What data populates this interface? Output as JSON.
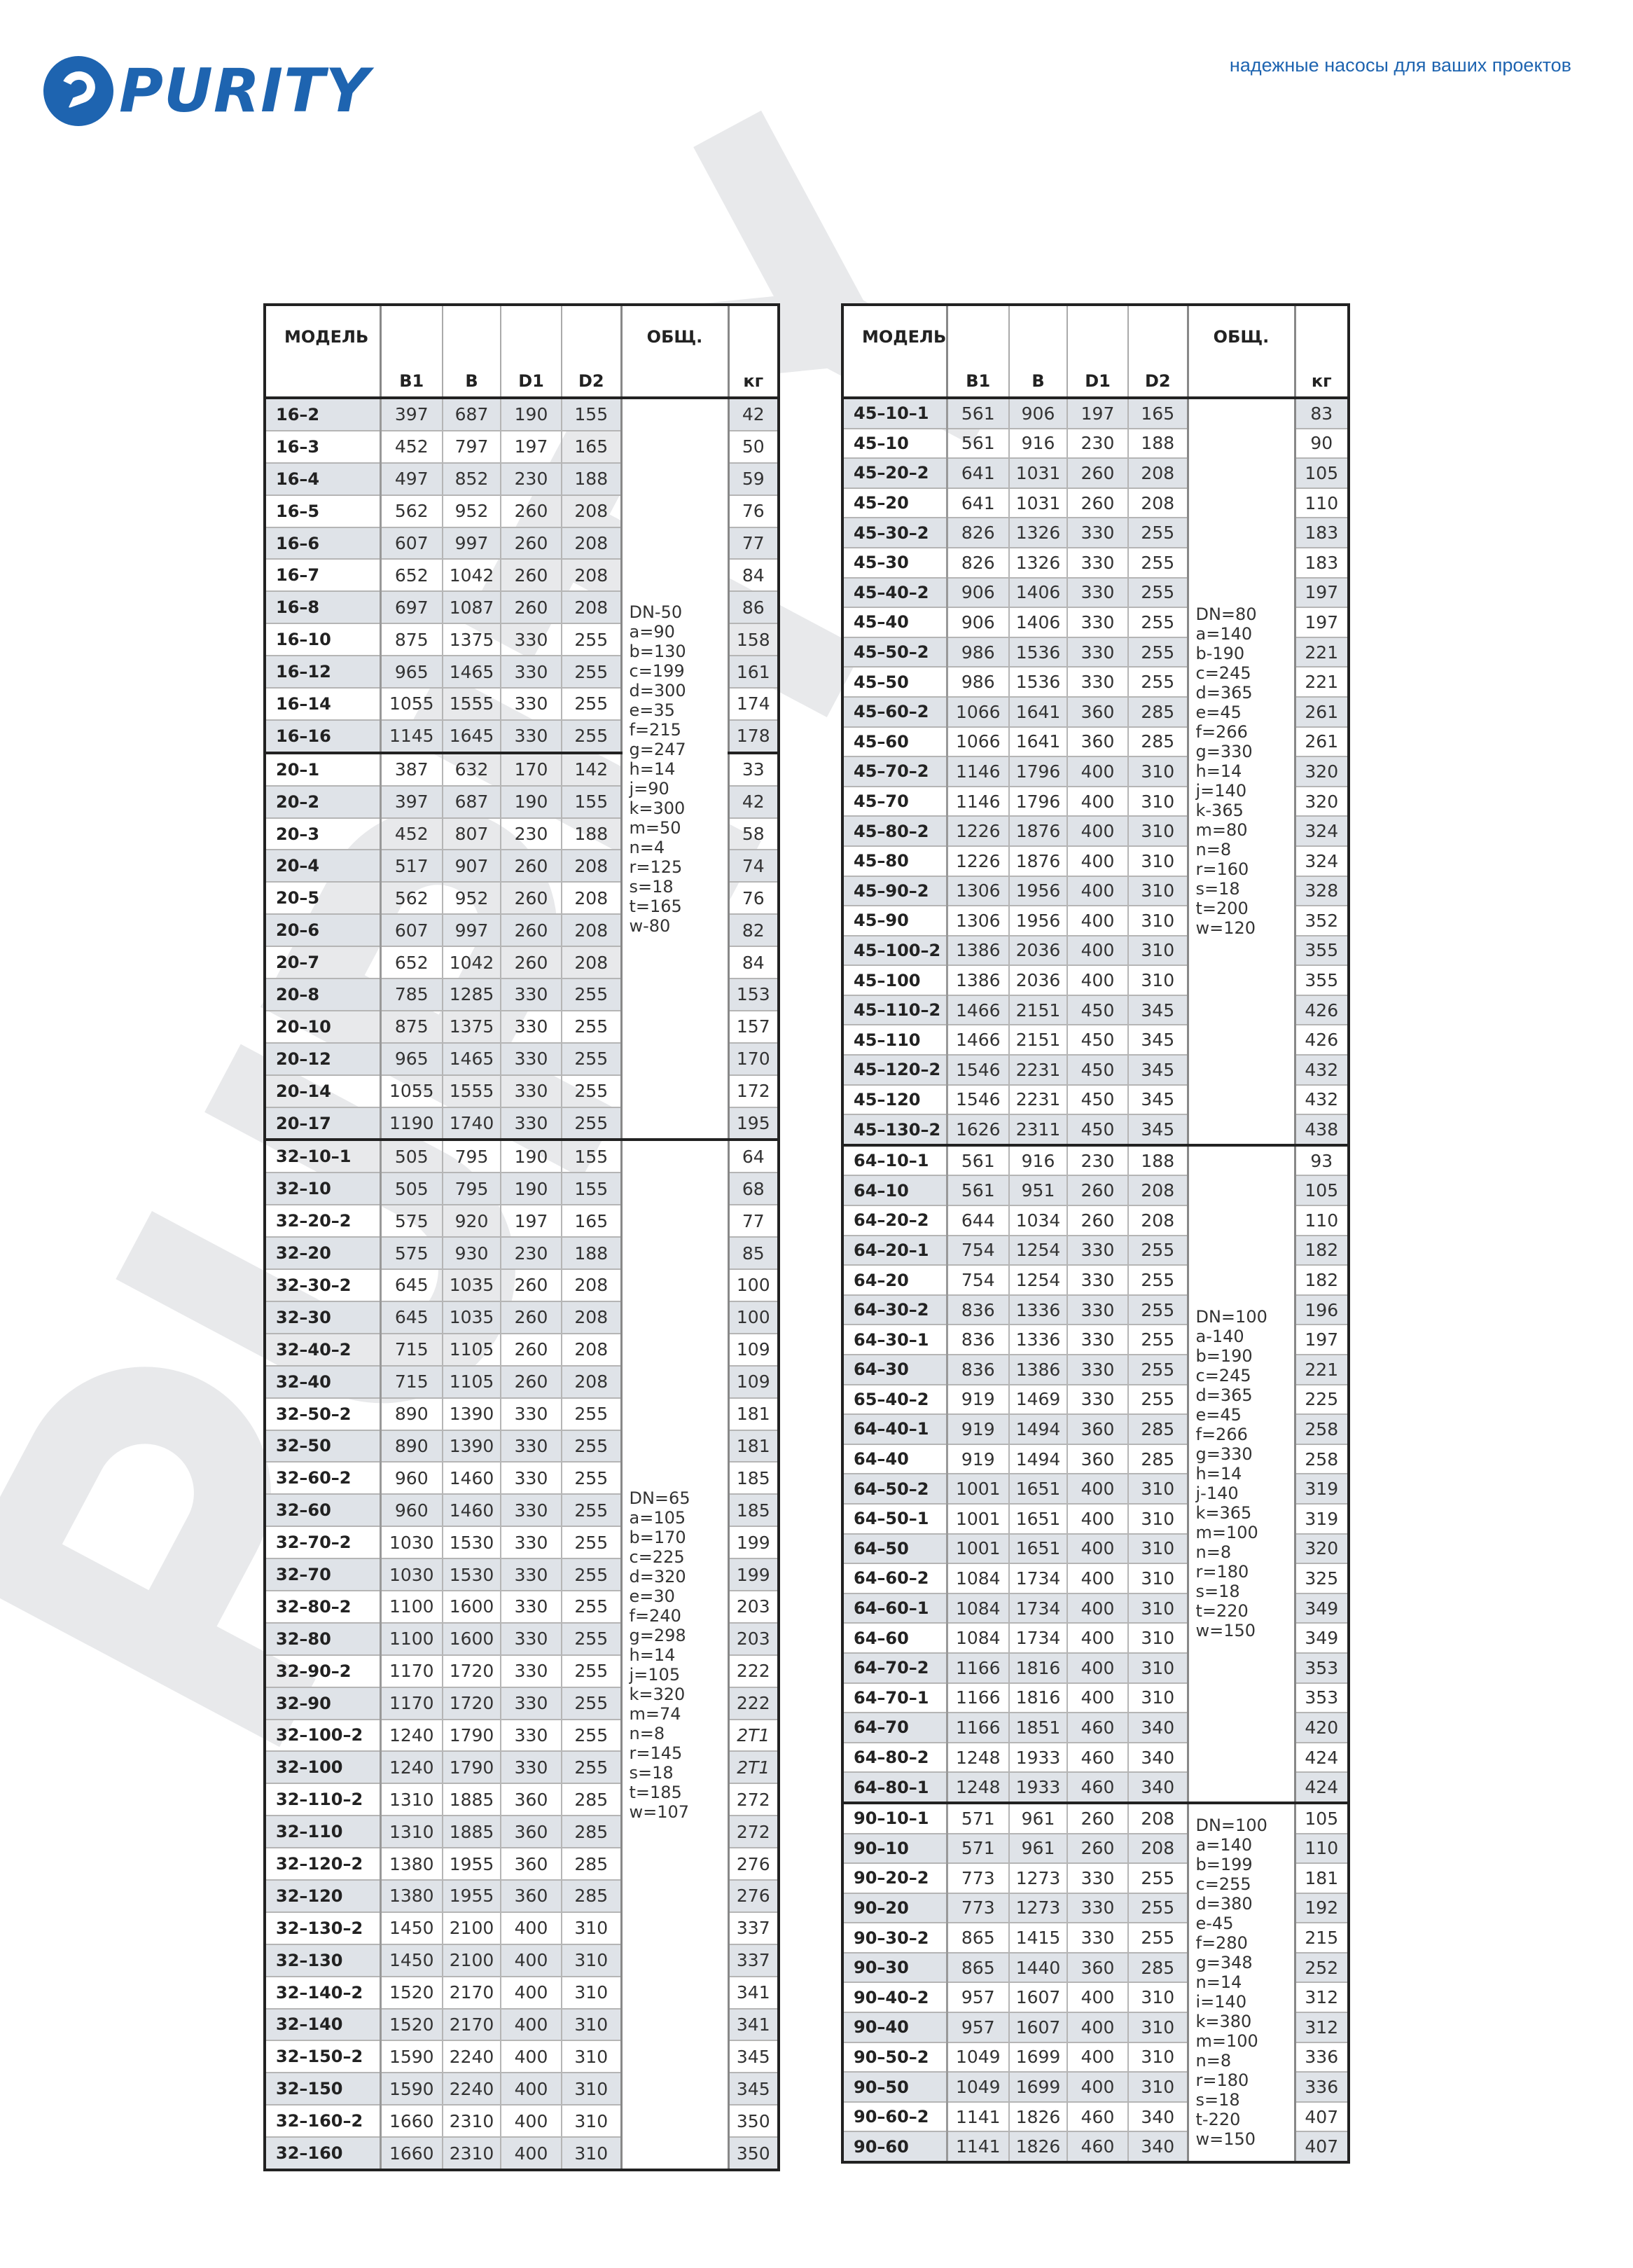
{
  "brand": {
    "logo_text": "PURITY",
    "slogan": "надежные насосы для ваших проектов",
    "color": "#1e64b0"
  },
  "watermark": "PURITY",
  "headers": {
    "model": "МОДЕЛЬ",
    "b1": "B1",
    "b": "B",
    "d1": "D1",
    "d2": "D2",
    "total": "ОБЩ.",
    "kg": "кг"
  },
  "tables": [
    {
      "groups": [
        {
          "note": "DN-50\na=90\nb=130\nc=199\nd=300\ne=35\nf=215\ng=247\nh=14\nj=90\nk=300\nm=50\nn=4\nr=125\ns=18\nt=165\nw-80",
          "note_rows": 23,
          "rows": [
            [
              "16–2",
              "397",
              "687",
              "190",
              "155",
              "42"
            ],
            [
              "16–3",
              "452",
              "797",
              "197",
              "165",
              "50"
            ],
            [
              "16–4",
              "497",
              "852",
              "230",
              "188",
              "59"
            ],
            [
              "16–5",
              "562",
              "952",
              "260",
              "208",
              "76"
            ],
            [
              "16–6",
              "607",
              "997",
              "260",
              "208",
              "77"
            ],
            [
              "16–7",
              "652",
              "1042",
              "260",
              "208",
              "84"
            ],
            [
              "16–8",
              "697",
              "1087",
              "260",
              "208",
              "86"
            ],
            [
              "16–10",
              "875",
              "1375",
              "330",
              "255",
              "158"
            ],
            [
              "16–12",
              "965",
              "1465",
              "330",
              "255",
              "161"
            ],
            [
              "16–14",
              "1055",
              "1555",
              "330",
              "255",
              "174"
            ],
            [
              "16–16",
              "1145",
              "1645",
              "330",
              "255",
              "178"
            ],
            [
              "20–1",
              "387",
              "632",
              "170",
              "142",
              "33"
            ],
            [
              "20–2",
              "397",
              "687",
              "190",
              "155",
              "42"
            ],
            [
              "20–3",
              "452",
              "807",
              "230",
              "188",
              "58"
            ],
            [
              "20–4",
              "517",
              "907",
              "260",
              "208",
              "74"
            ],
            [
              "20–5",
              "562",
              "952",
              "260",
              "208",
              "76"
            ],
            [
              "20–6",
              "607",
              "997",
              "260",
              "208",
              "82"
            ],
            [
              "20–7",
              "652",
              "1042",
              "260",
              "208",
              "84"
            ],
            [
              "20–8",
              "785",
              "1285",
              "330",
              "255",
              "153"
            ],
            [
              "20–10",
              "875",
              "1375",
              "330",
              "255",
              "157"
            ],
            [
              "20–12",
              "965",
              "1465",
              "330",
              "255",
              "170"
            ],
            [
              "20–14",
              "1055",
              "1555",
              "330",
              "255",
              "172"
            ],
            [
              "20–17",
              "1190",
              "1740",
              "330",
              "255",
              "195"
            ]
          ],
          "divider_after": [
            10
          ]
        },
        {
          "note": "DN=65\na=105\nb=170\nc=225\nd=320\ne=30\nf=240\ng=298\nh=14\nj=105\nk=320\nm=74\nn=8\nr=145\ns=18\nt=185\nw=107",
          "rows": [
            [
              "32–10–1",
              "505",
              "795",
              "190",
              "155",
              "64"
            ],
            [
              "32–10",
              "505",
              "795",
              "190",
              "155",
              "68"
            ],
            [
              "32–20–2",
              "575",
              "920",
              "197",
              "165",
              "77"
            ],
            [
              "32–20",
              "575",
              "930",
              "230",
              "188",
              "85"
            ],
            [
              "32–30–2",
              "645",
              "1035",
              "260",
              "208",
              "100"
            ],
            [
              "32–30",
              "645",
              "1035",
              "260",
              "208",
              "100"
            ],
            [
              "32–40–2",
              "715",
              "1105",
              "260",
              "208",
              "109"
            ],
            [
              "32–40",
              "715",
              "1105",
              "260",
              "208",
              "109"
            ],
            [
              "32–50–2",
              "890",
              "1390",
              "330",
              "255",
              "181"
            ],
            [
              "32–50",
              "890",
              "1390",
              "330",
              "255",
              "181"
            ],
            [
              "32–60–2",
              "960",
              "1460",
              "330",
              "255",
              "185"
            ],
            [
              "32–60",
              "960",
              "1460",
              "330",
              "255",
              "185"
            ],
            [
              "32–70–2",
              "1030",
              "1530",
              "330",
              "255",
              "199"
            ],
            [
              "32–70",
              "1030",
              "1530",
              "330",
              "255",
              "199"
            ],
            [
              "32–80–2",
              "1100",
              "1600",
              "330",
              "255",
              "203"
            ],
            [
              "32–80",
              "1100",
              "1600",
              "330",
              "255",
              "203"
            ],
            [
              "32–90–2",
              "1170",
              "1720",
              "330",
              "255",
              "222"
            ],
            [
              "32–90",
              "1170",
              "1720",
              "330",
              "255",
              "222"
            ],
            [
              "32–100–2",
              "1240",
              "1790",
              "330",
              "255",
              "2T1"
            ],
            [
              "32–100",
              "1240",
              "1790",
              "330",
              "255",
              "2T1"
            ],
            [
              "32–110–2",
              "1310",
              "1885",
              "360",
              "285",
              "272"
            ],
            [
              "32–110",
              "1310",
              "1885",
              "360",
              "285",
              "272"
            ],
            [
              "32–120–2",
              "1380",
              "1955",
              "360",
              "285",
              "276"
            ],
            [
              "32–120",
              "1380",
              "1955",
              "360",
              "285",
              "276"
            ],
            [
              "32–130–2",
              "1450",
              "2100",
              "400",
              "310",
              "337"
            ],
            [
              "32–130",
              "1450",
              "2100",
              "400",
              "310",
              "337"
            ],
            [
              "32–140–2",
              "1520",
              "2170",
              "400",
              "310",
              "341"
            ],
            [
              "32–140",
              "1520",
              "2170",
              "400",
              "310",
              "341"
            ],
            [
              "32–150–2",
              "1590",
              "2240",
              "400",
              "310",
              "345"
            ],
            [
              "32–150",
              "1590",
              "2240",
              "400",
              "310",
              "345"
            ],
            [
              "32–160–2",
              "1660",
              "2310",
              "400",
              "310",
              "350"
            ],
            [
              "32–160",
              "1660",
              "2310",
              "400",
              "310",
              "350"
            ]
          ]
        }
      ]
    },
    {
      "groups": [
        {
          "note": "DN=80\na=140\nb-190\nc=245\nd=365\ne=45\nf=266\ng=330\nh=14\nj=140\nk-365\nm=80\nn=8\nr=160\ns=18\nt=200\nw=120",
          "rows": [
            [
              "45–10–1",
              "561",
              "906",
              "197",
              "165",
              "83"
            ],
            [
              "45–10",
              "561",
              "916",
              "230",
              "188",
              "90"
            ],
            [
              "45–20–2",
              "641",
              "1031",
              "260",
              "208",
              "105"
            ],
            [
              "45–20",
              "641",
              "1031",
              "260",
              "208",
              "110"
            ],
            [
              "45–30–2",
              "826",
              "1326",
              "330",
              "255",
              "183"
            ],
            [
              "45–30",
              "826",
              "1326",
              "330",
              "255",
              "183"
            ],
            [
              "45–40–2",
              "906",
              "1406",
              "330",
              "255",
              "197"
            ],
            [
              "45–40",
              "906",
              "1406",
              "330",
              "255",
              "197"
            ],
            [
              "45–50–2",
              "986",
              "1536",
              "330",
              "255",
              "221"
            ],
            [
              "45–50",
              "986",
              "1536",
              "330",
              "255",
              "221"
            ],
            [
              "45–60–2",
              "1066",
              "1641",
              "360",
              "285",
              "261"
            ],
            [
              "45–60",
              "1066",
              "1641",
              "360",
              "285",
              "261"
            ],
            [
              "45–70–2",
              "1146",
              "1796",
              "400",
              "310",
              "320"
            ],
            [
              "45–70",
              "1146",
              "1796",
              "400",
              "310",
              "320"
            ],
            [
              "45–80–2",
              "1226",
              "1876",
              "400",
              "310",
              "324"
            ],
            [
              "45–80",
              "1226",
              "1876",
              "400",
              "310",
              "324"
            ],
            [
              "45–90–2",
              "1306",
              "1956",
              "400",
              "310",
              "328"
            ],
            [
              "45–90",
              "1306",
              "1956",
              "400",
              "310",
              "352"
            ],
            [
              "45–100–2",
              "1386",
              "2036",
              "400",
              "310",
              "355"
            ],
            [
              "45–100",
              "1386",
              "2036",
              "400",
              "310",
              "355"
            ],
            [
              "45–110–2",
              "1466",
              "2151",
              "450",
              "345",
              "426"
            ],
            [
              "45–110",
              "1466",
              "2151",
              "450",
              "345",
              "426"
            ],
            [
              "45–120–2",
              "1546",
              "2231",
              "450",
              "345",
              "432"
            ],
            [
              "45–120",
              "1546",
              "2231",
              "450",
              "345",
              "432"
            ],
            [
              "45–130–2",
              "1626",
              "2311",
              "450",
              "345",
              "438"
            ]
          ]
        },
        {
          "note": "DN=100\na-140\nb=190\nc=245\nd=365\ne=45\nf=266\ng=330\nh=14\nj-140\nk=365\nm=100\nn=8\nr=180\ns=18\nt=220\nw=150",
          "rows": [
            [
              "64–10–1",
              "561",
              "916",
              "230",
              "188",
              "93"
            ],
            [
              "64–10",
              "561",
              "951",
              "260",
              "208",
              "105"
            ],
            [
              "64–20–2",
              "644",
              "1034",
              "260",
              "208",
              "110"
            ],
            [
              "64–20–1",
              "754",
              "1254",
              "330",
              "255",
              "182"
            ],
            [
              "64–20",
              "754",
              "1254",
              "330",
              "255",
              "182"
            ],
            [
              "64–30–2",
              "836",
              "1336",
              "330",
              "255",
              "196"
            ],
            [
              "64–30–1",
              "836",
              "1336",
              "330",
              "255",
              "197"
            ],
            [
              "64–30",
              "836",
              "1386",
              "330",
              "255",
              "221"
            ],
            [
              "65–40–2",
              "919",
              "1469",
              "330",
              "255",
              "225"
            ],
            [
              "64–40–1",
              "919",
              "1494",
              "360",
              "285",
              "258"
            ],
            [
              "64–40",
              "919",
              "1494",
              "360",
              "285",
              "258"
            ],
            [
              "64–50–2",
              "1001",
              "1651",
              "400",
              "310",
              "319"
            ],
            [
              "64–50–1",
              "1001",
              "1651",
              "400",
              "310",
              "319"
            ],
            [
              "64–50",
              "1001",
              "1651",
              "400",
              "310",
              "320"
            ],
            [
              "64–60–2",
              "1084",
              "1734",
              "400",
              "310",
              "325"
            ],
            [
              "64–60–1",
              "1084",
              "1734",
              "400",
              "310",
              "349"
            ],
            [
              "64–60",
              "1084",
              "1734",
              "400",
              "310",
              "349"
            ],
            [
              "64–70–2",
              "1166",
              "1816",
              "400",
              "310",
              "353"
            ],
            [
              "64–70–1",
              "1166",
              "1816",
              "400",
              "310",
              "353"
            ],
            [
              "64–70",
              "1166",
              "1851",
              "460",
              "340",
              "420"
            ],
            [
              "64–80–2",
              "1248",
              "1933",
              "460",
              "340",
              "424"
            ],
            [
              "64–80–1",
              "1248",
              "1933",
              "460",
              "340",
              "424"
            ]
          ]
        },
        {
          "note": "DN=100\na=140\nb=199\nc=255\nd=380\ne-45\nf=280\ng=348\nn=14\ni=140\nk=380\nm=100\nn=8\nr=180\ns=18\nt-220\nw=150",
          "rows": [
            [
              "90–10–1",
              "571",
              "961",
              "260",
              "208",
              "105"
            ],
            [
              "90–10",
              "571",
              "961",
              "260",
              "208",
              "110"
            ],
            [
              "90–20–2",
              "773",
              "1273",
              "330",
              "255",
              "181"
            ],
            [
              "90–20",
              "773",
              "1273",
              "330",
              "255",
              "192"
            ],
            [
              "90–30–2",
              "865",
              "1415",
              "330",
              "255",
              "215"
            ],
            [
              "90–30",
              "865",
              "1440",
              "360",
              "285",
              "252"
            ],
            [
              "90–40–2",
              "957",
              "1607",
              "400",
              "310",
              "312"
            ],
            [
              "90–40",
              "957",
              "1607",
              "400",
              "310",
              "312"
            ],
            [
              "90–50–2",
              "1049",
              "1699",
              "400",
              "310",
              "336"
            ],
            [
              "90–50",
              "1049",
              "1699",
              "400",
              "310",
              "336"
            ],
            [
              "90–60–2",
              "1141",
              "1826",
              "460",
              "340",
              "407"
            ],
            [
              "90–60",
              "1141",
              "1826",
              "460",
              "340",
              "407"
            ]
          ]
        }
      ]
    }
  ]
}
